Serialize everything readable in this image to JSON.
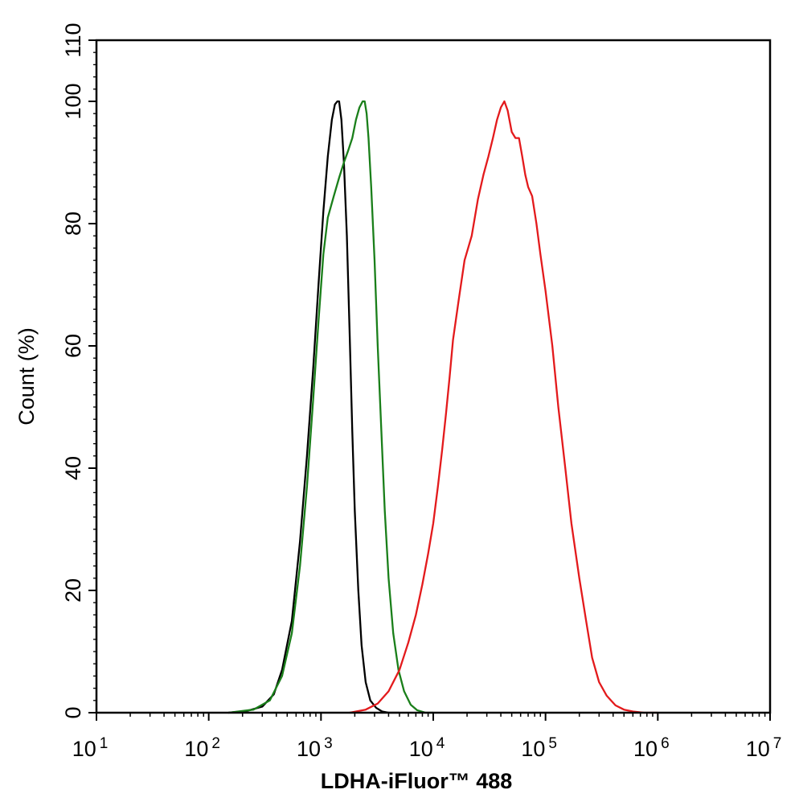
{
  "chart_data": {
    "type": "line",
    "title": "",
    "xlabel": "LDHA-iFluor™ 488",
    "ylabel": "Count  (%)",
    "x_scale": "log",
    "xlim": [
      10,
      10000000
    ],
    "ylim": [
      0,
      110
    ],
    "grid": false,
    "legend": "none",
    "x_ticks": [
      {
        "base": "10",
        "exp": "1"
      },
      {
        "base": "10",
        "exp": "2"
      },
      {
        "base": "10",
        "exp": "3"
      },
      {
        "base": "10",
        "exp": "4"
      },
      {
        "base": "10",
        "exp": "5"
      },
      {
        "base": "10",
        "exp": "6"
      },
      {
        "base": "10",
        "exp": "7"
      }
    ],
    "y_ticks": [
      "0",
      "20",
      "40",
      "60",
      "80",
      "100",
      "110"
    ],
    "series": [
      {
        "color": "#000000",
        "x": [
          150,
          220,
          300,
          380,
          450,
          550,
          650,
          750,
          850,
          950,
          1050,
          1150,
          1250,
          1330,
          1400,
          1450,
          1520,
          1600,
          1700,
          1800,
          1900,
          2000,
          2150,
          2300,
          2500,
          2750,
          3100,
          3500,
          4000,
          5000
        ],
        "y": [
          0,
          0.3,
          1,
          3,
          7,
          15,
          28,
          42,
          56,
          70,
          82,
          91,
          97,
          99.5,
          100,
          100,
          97,
          90,
          78,
          62,
          46,
          33,
          20,
          11,
          5,
          2,
          0.8,
          0.2,
          0,
          0
        ]
      },
      {
        "color": "#1a7f1a",
        "x": [
          150,
          250,
          350,
          450,
          550,
          650,
          750,
          850,
          950,
          1050,
          1150,
          1300,
          1450,
          1600,
          1750,
          1900,
          2050,
          2200,
          2350,
          2450,
          2550,
          2650,
          2800,
          3000,
          3200,
          3450,
          3700,
          4000,
          4400,
          4900,
          5500,
          6300,
          7200,
          8500,
          10000
        ],
        "y": [
          0,
          0.5,
          2,
          6,
          13,
          24,
          37,
          51,
          64,
          75,
          81,
          84.5,
          87.5,
          90,
          92,
          94,
          97,
          99,
          100,
          100,
          98,
          94,
          86,
          74,
          60,
          46,
          33,
          22,
          13,
          7,
          3.5,
          1.3,
          0.4,
          0,
          0
        ]
      },
      {
        "color": "#e31a1c",
        "x": [
          1800,
          2500,
          3200,
          4000,
          5000,
          6000,
          7000,
          8000,
          9000,
          10000,
          11000,
          12000,
          13000,
          14000,
          15000,
          17000,
          19000,
          22000,
          25000,
          28000,
          31000,
          34000,
          37000,
          40000,
          43000,
          46000,
          50000,
          54000,
          58000,
          62000,
          66000,
          70000,
          76000,
          83000,
          90000,
          100000,
          115000,
          130000,
          150000,
          170000,
          200000,
          230000,
          260000,
          300000,
          350000,
          420000,
          500000,
          600000,
          750000,
          900000,
          1000000
        ],
        "y": [
          0,
          0.5,
          1.5,
          3.5,
          7,
          11.5,
          16,
          21,
          26,
          31,
          37,
          43,
          49,
          55,
          61,
          68,
          74,
          78,
          84,
          88,
          91,
          94,
          97,
          99,
          100,
          98.5,
          95,
          94,
          94,
          91,
          88,
          86,
          84.5,
          80,
          75,
          69,
          60,
          50,
          40,
          31,
          22,
          15,
          9,
          5,
          2.8,
          1.2,
          0.5,
          0.2,
          0,
          0,
          0
        ]
      }
    ]
  }
}
